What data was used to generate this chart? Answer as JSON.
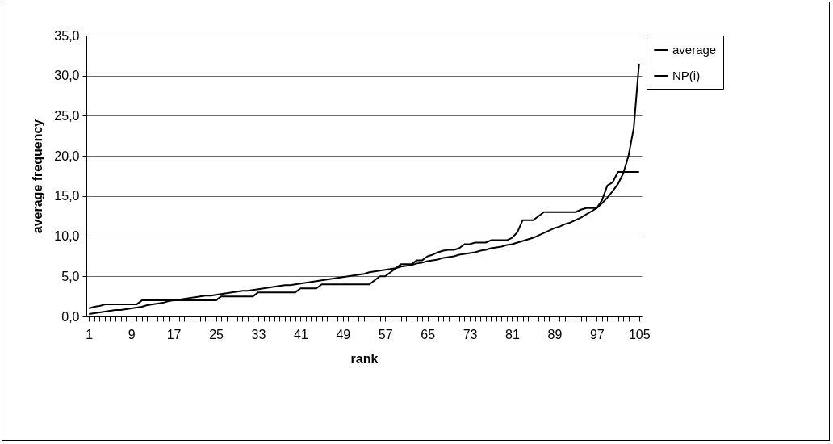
{
  "chart_data": {
    "type": "line",
    "xlabel": "rank",
    "ylabel": "average frequency",
    "categories": [
      "1",
      null,
      null,
      null,
      null,
      null,
      null,
      null,
      "9",
      null,
      null,
      null,
      null,
      null,
      null,
      null,
      "17",
      null,
      null,
      null,
      null,
      null,
      null,
      null,
      "25",
      null,
      null,
      null,
      null,
      null,
      null,
      null,
      "33",
      null,
      null,
      null,
      null,
      null,
      null,
      null,
      "41",
      null,
      null,
      null,
      null,
      null,
      null,
      null,
      "49",
      null,
      null,
      null,
      null,
      null,
      null,
      null,
      "57",
      null,
      null,
      null,
      null,
      null,
      null,
      null,
      "65",
      null,
      null,
      null,
      null,
      null,
      null,
      null,
      "73",
      null,
      null,
      null,
      null,
      null,
      null,
      null,
      "81",
      null,
      null,
      null,
      null,
      null,
      null,
      null,
      "89",
      null,
      null,
      null,
      null,
      null,
      null,
      null,
      "97",
      null,
      null,
      null,
      null,
      null,
      null,
      null,
      "105"
    ],
    "series": [
      {
        "name": "average",
        "color": "#000000",
        "values": [
          0.3,
          0.4,
          0.5,
          0.6,
          0.7,
          0.8,
          0.8,
          0.9,
          1.0,
          1.1,
          1.2,
          1.4,
          1.5,
          1.6,
          1.7,
          1.9,
          2.0,
          2.1,
          2.2,
          2.3,
          2.4,
          2.5,
          2.6,
          2.6,
          2.7,
          2.8,
          2.9,
          3.0,
          3.1,
          3.2,
          3.2,
          3.3,
          3.4,
          3.5,
          3.6,
          3.7,
          3.8,
          3.9,
          3.9,
          4.0,
          4.1,
          4.2,
          4.3,
          4.4,
          4.5,
          4.6,
          4.7,
          4.8,
          4.9,
          5.0,
          5.1,
          5.2,
          5.3,
          5.5,
          5.6,
          5.7,
          5.8,
          5.9,
          6.0,
          6.2,
          6.3,
          6.4,
          6.6,
          6.7,
          6.9,
          7.0,
          7.1,
          7.3,
          7.4,
          7.5,
          7.7,
          7.8,
          7.9,
          8.0,
          8.2,
          8.3,
          8.5,
          8.6,
          8.7,
          8.9,
          9.0,
          9.2,
          9.4,
          9.6,
          9.8,
          10.1,
          10.4,
          10.7,
          11.0,
          11.2,
          11.5,
          11.7,
          12.0,
          12.3,
          12.7,
          13.1,
          13.5,
          14.1,
          14.8,
          15.6,
          16.5,
          17.8,
          20.0,
          23.5,
          31.5
        ]
      },
      {
        "name": "NP(i)",
        "color": "#000000",
        "values": [
          1.0,
          1.2,
          1.3,
          1.5,
          1.5,
          1.5,
          1.5,
          1.5,
          1.5,
          1.5,
          2.0,
          2.0,
          2.0,
          2.0,
          2.0,
          2.0,
          2.0,
          2.0,
          2.0,
          2.0,
          2.0,
          2.0,
          2.0,
          2.0,
          2.0,
          2.5,
          2.5,
          2.5,
          2.5,
          2.5,
          2.5,
          2.5,
          3.0,
          3.0,
          3.0,
          3.0,
          3.0,
          3.0,
          3.0,
          3.0,
          3.5,
          3.5,
          3.5,
          3.5,
          4.0,
          4.0,
          4.0,
          4.0,
          4.0,
          4.0,
          4.0,
          4.0,
          4.0,
          4.0,
          4.5,
          5.0,
          5.0,
          5.5,
          6.0,
          6.5,
          6.5,
          6.5,
          7.0,
          7.0,
          7.5,
          7.7,
          8.0,
          8.2,
          8.3,
          8.3,
          8.5,
          9.0,
          9.0,
          9.2,
          9.2,
          9.2,
          9.5,
          9.5,
          9.5,
          9.5,
          9.8,
          10.5,
          12.0,
          12.0,
          12.0,
          12.5,
          13.0,
          13.0,
          13.0,
          13.0,
          13.0,
          13.0,
          13.0,
          13.3,
          13.5,
          13.5,
          13.5,
          14.5,
          16.3,
          16.7,
          18.0,
          18.0,
          18.0,
          18.0,
          18.0
        ]
      }
    ],
    "ylim": [
      0,
      35
    ],
    "yticks": [
      {
        "value": 0,
        "label": "0,0"
      },
      {
        "value": 5,
        "label": "5,0"
      },
      {
        "value": 10,
        "label": "10,0"
      },
      {
        "value": 15,
        "label": "15,0"
      },
      {
        "value": 20,
        "label": "20,0"
      },
      {
        "value": 25,
        "label": "25,0"
      },
      {
        "value": 30,
        "label": "30,0"
      },
      {
        "value": 35,
        "label": "35,0"
      }
    ],
    "grid": "y",
    "legend": "right",
    "marker": "none",
    "line_style": "solid"
  }
}
